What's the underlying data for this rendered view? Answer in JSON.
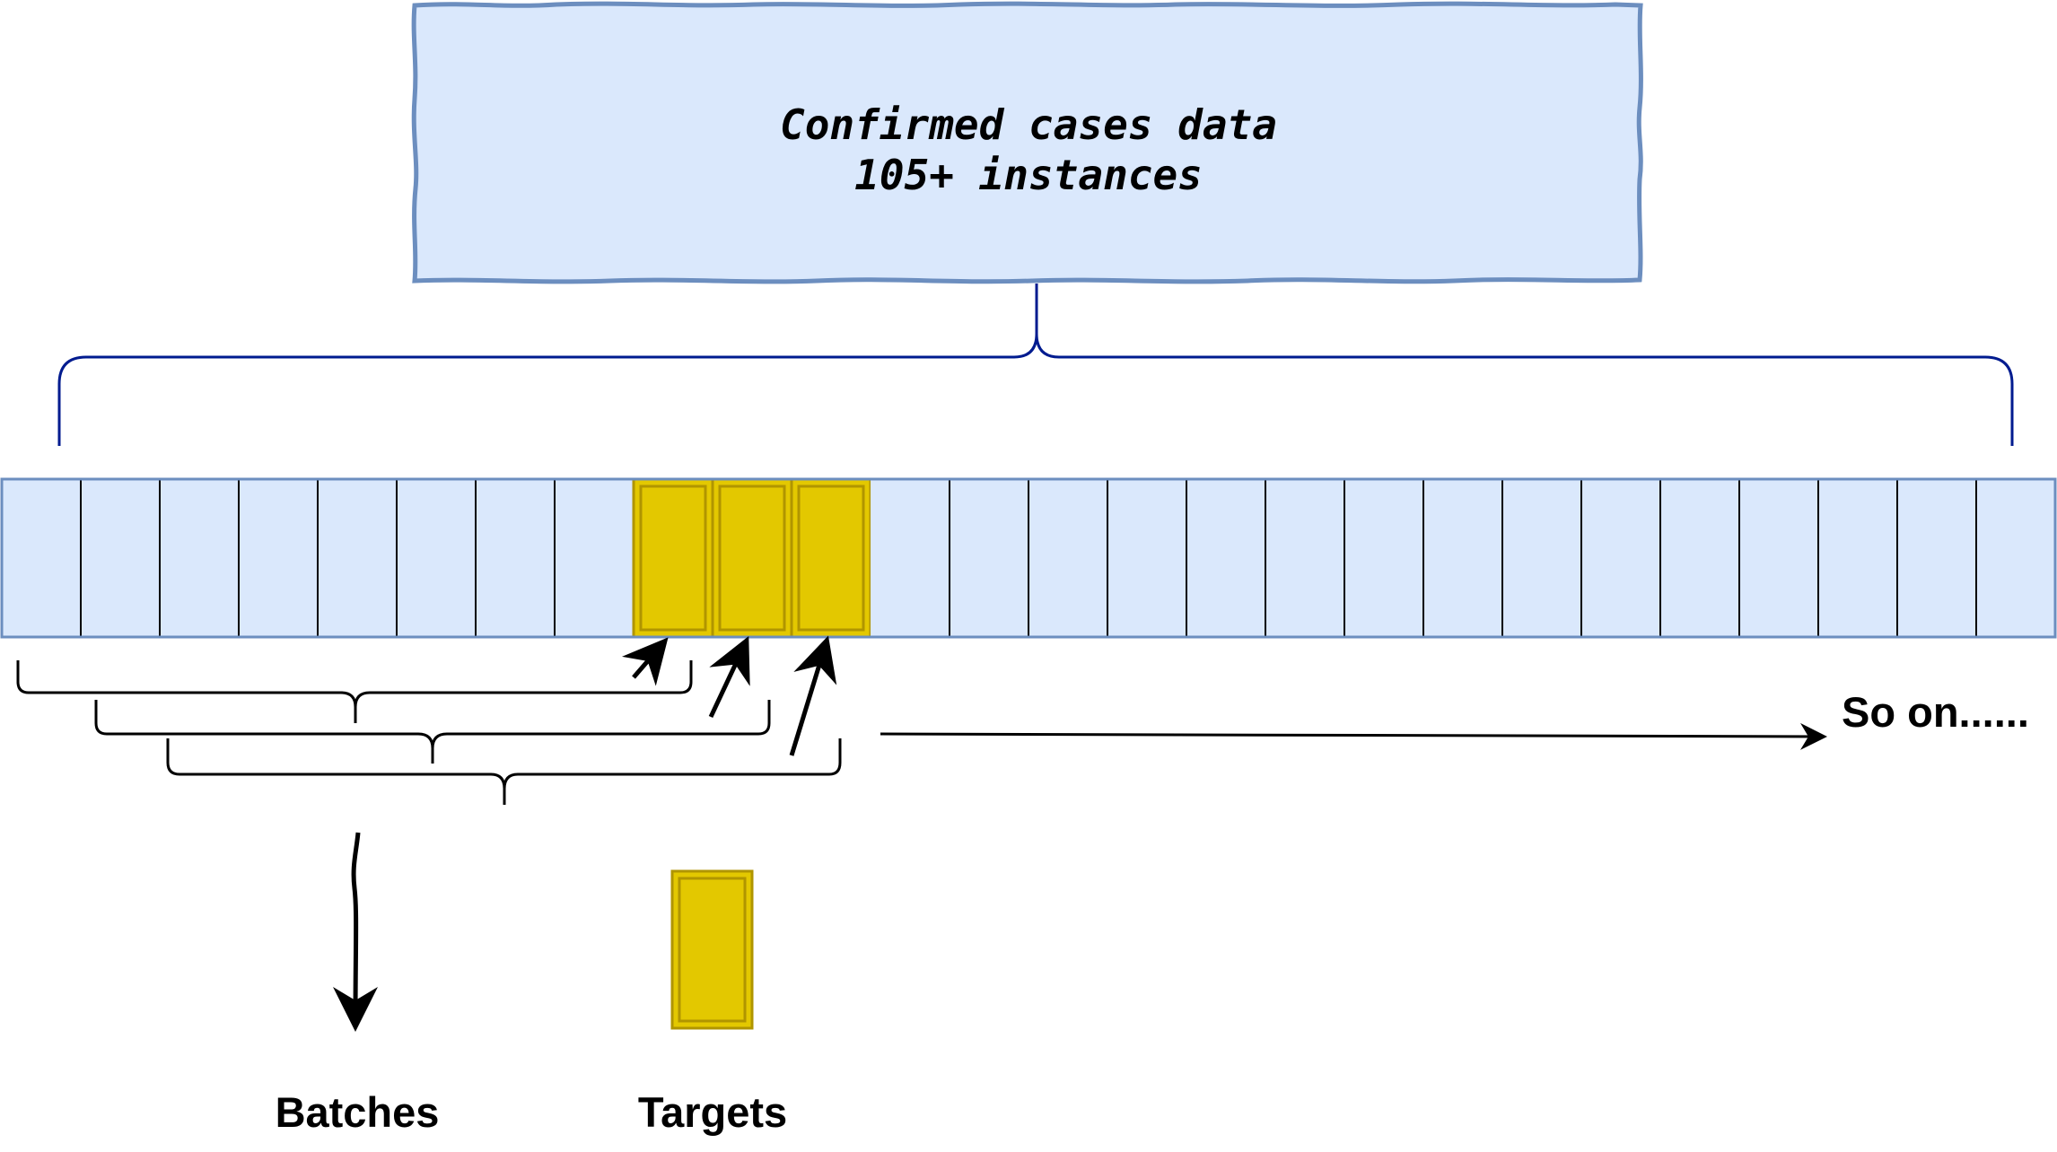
{
  "diagram": {
    "title_box": {
      "line1": "Confirmed cases data",
      "line2": "105+ instances"
    },
    "sequence": {
      "cell_count": 26,
      "highlighted_cells": [
        8,
        9,
        10
      ]
    },
    "continuation_label": "So on......",
    "legend": {
      "batches_label": "Batches",
      "targets_label": "Targets"
    },
    "colors": {
      "box_fill": "#dae8fc",
      "box_stroke": "#6c8ebf",
      "brace_blue": "#001b8f",
      "target_fill": "#e3c800",
      "target_stroke": "#b09500",
      "ink": "#000000"
    }
  }
}
